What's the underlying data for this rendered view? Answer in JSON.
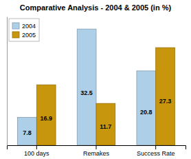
{
  "chart_data": {
    "type": "bar",
    "title": "Comparative Analysis - 2004 & 2005 (in %)",
    "categories": [
      "100 days",
      "Remakes",
      "Success Rate"
    ],
    "series": [
      {
        "name": "2004",
        "color": "#aecfe8",
        "values": [
          7.8,
          32.5,
          20.8
        ]
      },
      {
        "name": "2005",
        "color": "#c8960c",
        "values": [
          16.9,
          11.7,
          27.3
        ]
      }
    ],
    "ylim": [
      0,
      36
    ],
    "grid": false,
    "legend": "upper left",
    "data_labels": true,
    "tick_labels": "x"
  }
}
